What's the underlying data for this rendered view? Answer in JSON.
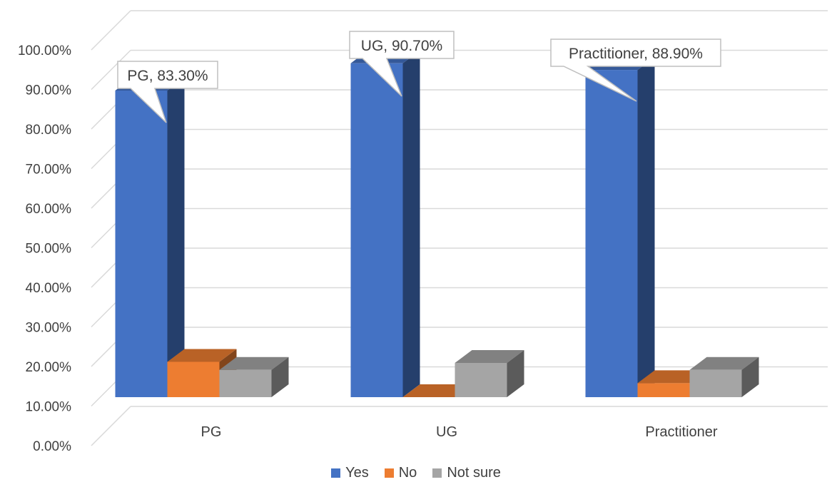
{
  "chart_data": {
    "type": "bar",
    "categories": [
      "PG",
      "UG",
      "Practitioner"
    ],
    "series": [
      {
        "name": "Yes",
        "values": [
          83.3,
          90.7,
          88.9
        ],
        "color": "#4472C4"
      },
      {
        "name": "No",
        "values": [
          9.6,
          0.0,
          3.8
        ],
        "color": "#ED7D31"
      },
      {
        "name": "Not sure",
        "values": [
          7.4,
          9.3,
          7.4
        ],
        "color": "#A5A5A5"
      }
    ],
    "ylim": [
      0,
      100
    ],
    "yticks": [
      "0.00%",
      "10.00%",
      "20.00%",
      "30.00%",
      "40.00%",
      "50.00%",
      "60.00%",
      "70.00%",
      "80.00%",
      "90.00%",
      "100.00%"
    ],
    "data_labels": [
      "PG, 83.30%",
      "UG, 90.70%",
      "Practitioner, 88.90%"
    ],
    "grid": true,
    "legend_position": "bottom",
    "style": "3d-clustered-column"
  }
}
